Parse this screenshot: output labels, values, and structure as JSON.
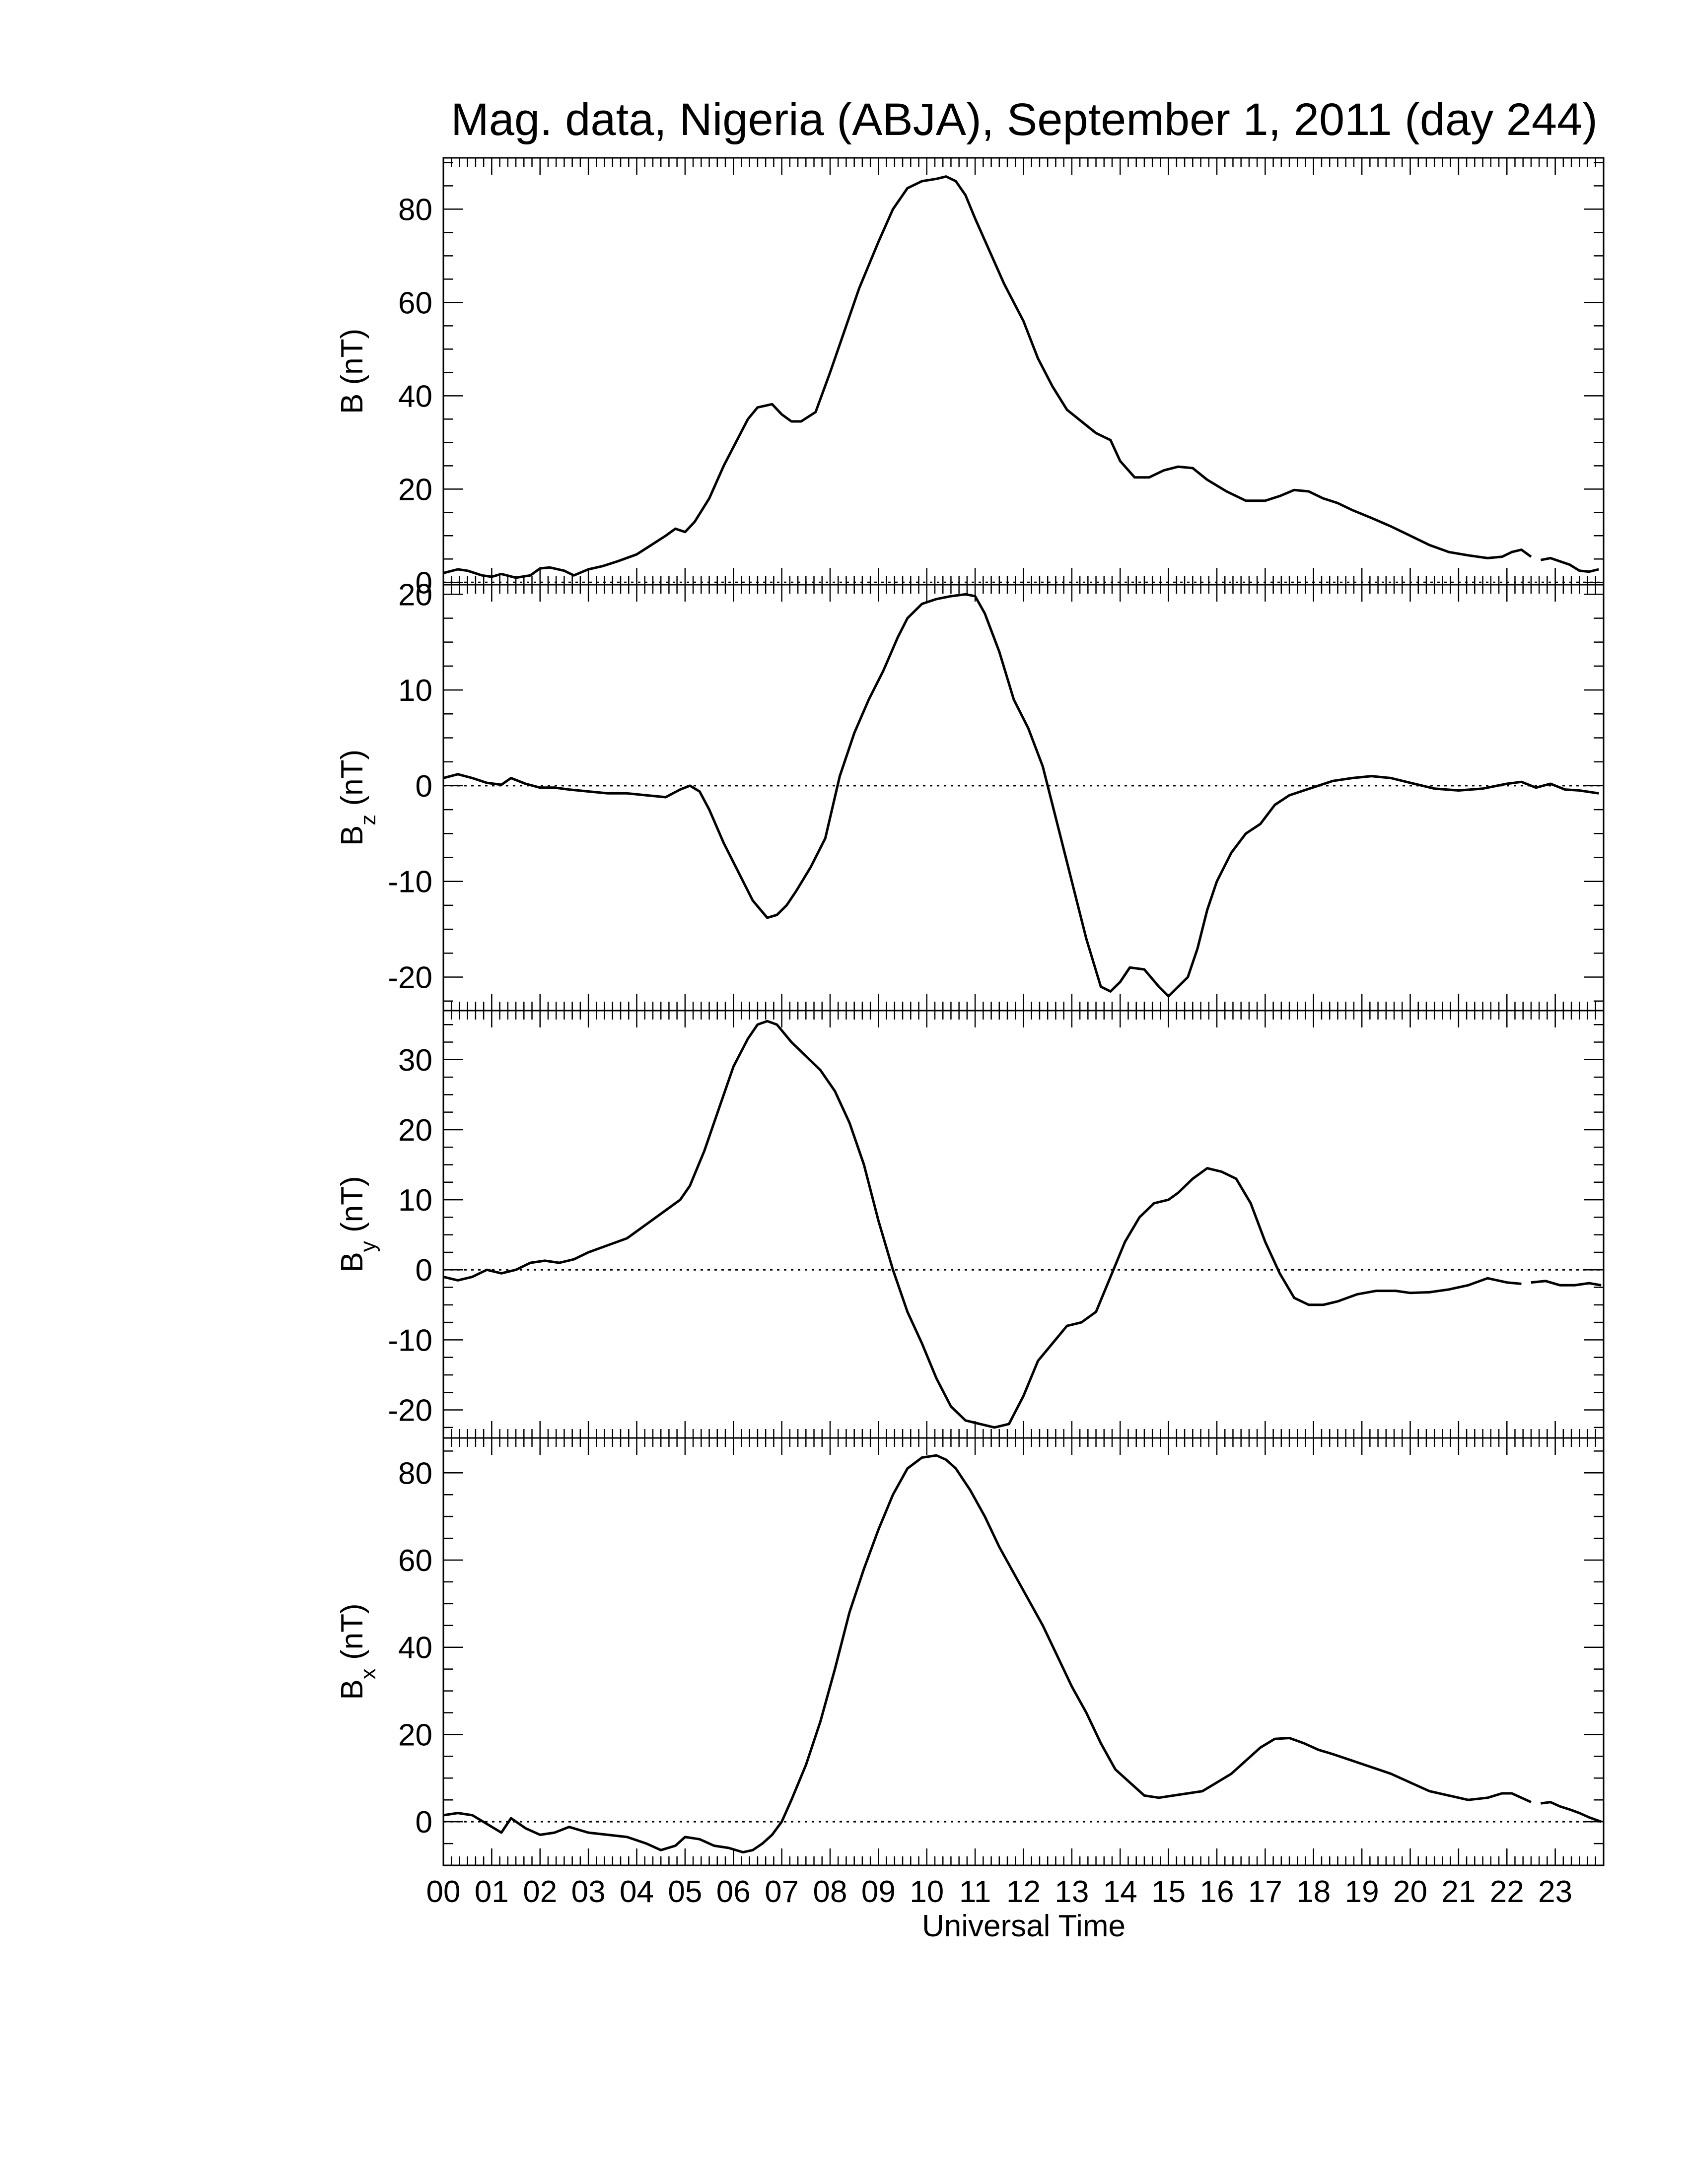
{
  "chart_data": {
    "type": "line",
    "title": "Mag. data, Nigeria (ABJA), September 1, 2011 (day 244)",
    "xlabel": "Universal Time",
    "x_ticks": [
      "00",
      "01",
      "02",
      "03",
      "04",
      "05",
      "06",
      "07",
      "08",
      "09",
      "10",
      "11",
      "12",
      "13",
      "14",
      "15",
      "16",
      "17",
      "18",
      "19",
      "20",
      "21",
      "22",
      "23"
    ],
    "xlim": [
      0,
      24
    ],
    "line_color": "#000000",
    "panels": [
      {
        "id": "B",
        "ylabel": "B (nT)",
        "ylabel_main": "B",
        "ylabel_sub": "",
        "ylabel_unit": " (nT)",
        "ylim": [
          -0.5,
          91
        ],
        "yticks": [
          0,
          20,
          40,
          60,
          80
        ],
        "zero_line": true,
        "series": [
          {
            "x": [
              0.0,
              0.3,
              0.5,
              0.8,
              1.0,
              1.2,
              1.5,
              1.8,
              2.0,
              2.2,
              2.5,
              2.7,
              3.0,
              3.3,
              3.6,
              4.0,
              4.3,
              4.6,
              4.8,
              5.0,
              5.2,
              5.5,
              5.8,
              6.1,
              6.3,
              6.5,
              6.8,
              7.0,
              7.2,
              7.4,
              7.7,
              8.0,
              8.3,
              8.6,
              9.0,
              9.3,
              9.6,
              9.9,
              10.2,
              10.4,
              10.6,
              10.8,
              11.0,
              11.3,
              11.6,
              12.0,
              12.3,
              12.6,
              12.9,
              13.2,
              13.5,
              13.8,
              14.0,
              14.3,
              14.6,
              14.9,
              15.2,
              15.5,
              15.8,
              16.2,
              16.6,
              17.0,
              17.3,
              17.6,
              17.9,
              18.2,
              18.5,
              18.8,
              19.2,
              19.6,
              20.0,
              20.4,
              20.8,
              21.2,
              21.6,
              21.9,
              22.1,
              22.3,
              22.5
            ],
            "y": [
              2,
              2.8,
              2.5,
              1.5,
              1.2,
              1.8,
              1.0,
              1.5,
              3.0,
              3.2,
              2.5,
              1.5,
              2.8,
              3.5,
              4.5,
              6,
              8,
              10,
              11.5,
              10.8,
              13,
              18,
              25,
              31,
              35,
              37.5,
              38.2,
              36,
              34.5,
              34.5,
              36.5,
              45,
              54,
              63,
              73,
              80,
              84.5,
              86,
              86.5,
              87,
              86,
              83,
              78,
              71,
              64,
              56,
              48,
              42,
              37,
              34.5,
              32,
              30.5,
              26,
              22.5,
              22.5,
              24,
              24.8,
              24.5,
              22,
              19.5,
              17.5,
              17.5,
              18.5,
              19.8,
              19.5,
              18,
              17,
              15.5,
              13.8,
              12,
              10,
              8,
              6.5,
              5.8,
              5.2,
              5.5,
              6.5,
              7,
              5.5
            ]
          },
          {
            "x": [
              22.7,
              22.9,
              23.1,
              23.3,
              23.5,
              23.7,
              23.9
            ],
            "y": [
              4.8,
              5.2,
              4.5,
              3.8,
              2.5,
              2.3,
              2.8
            ]
          }
        ]
      },
      {
        "id": "Bz",
        "ylabel": "Bz (nT)",
        "ylabel_main": "B",
        "ylabel_sub": "z",
        "ylabel_unit": " (nT)",
        "ylim": [
          -23.5,
          21
        ],
        "yticks": [
          -20,
          -10,
          0,
          10,
          20
        ],
        "zero_line": true,
        "series": [
          {
            "x": [
              0.0,
              0.3,
              0.6,
              0.9,
              1.2,
              1.4,
              1.7,
              2.0,
              2.3,
              2.6,
              3.0,
              3.4,
              3.8,
              4.2,
              4.6,
              4.9,
              5.1,
              5.3,
              5.5,
              5.8,
              6.1,
              6.4,
              6.7,
              6.9,
              7.1,
              7.3,
              7.6,
              7.9,
              8.2,
              8.5,
              8.8,
              9.1,
              9.4,
              9.6,
              9.9,
              10.2,
              10.5,
              10.8,
              11.0,
              11.2,
              11.5,
              11.8,
              12.1,
              12.4,
              12.7,
              13.0,
              13.3,
              13.6,
              13.8,
              14.0,
              14.2,
              14.5,
              14.8,
              15.0,
              15.2,
              15.4,
              15.6,
              15.8,
              16.0,
              16.3,
              16.6,
              16.9,
              17.2,
              17.5,
              17.8,
              18.1,
              18.4,
              18.8,
              19.2,
              19.6,
              20.0,
              20.5,
              21.0,
              21.5,
              22.0,
              22.3,
              22.6,
              22.9,
              23.2,
              23.5,
              23.9
            ],
            "y": [
              0.8,
              1.2,
              0.8,
              0.3,
              0.1,
              0.8,
              0.2,
              -0.2,
              -0.2,
              -0.4,
              -0.6,
              -0.8,
              -0.8,
              -1.0,
              -1.2,
              -0.4,
              0,
              -0.6,
              -2.5,
              -6,
              -9,
              -12,
              -13.8,
              -13.5,
              -12.5,
              -11,
              -8.5,
              -5.5,
              1,
              5.5,
              9,
              12,
              15.5,
              17.5,
              19,
              19.5,
              19.8,
              20,
              19.8,
              18,
              14,
              9,
              6,
              2,
              -4,
              -10,
              -16,
              -21,
              -21.5,
              -20.5,
              -19,
              -19.2,
              -21,
              -22,
              -21,
              -20,
              -17,
              -13,
              -10,
              -7,
              -5,
              -4,
              -2,
              -1,
              -0.5,
              0,
              0.5,
              0.8,
              1,
              0.8,
              0.3,
              -0.3,
              -0.5,
              -0.3,
              0.2,
              0.4,
              -0.2,
              0.2,
              -0.4,
              -0.5,
              -0.8
            ]
          }
        ]
      },
      {
        "id": "By",
        "ylabel": "By (nT)",
        "ylabel_main": "B",
        "ylabel_sub": "y",
        "ylabel_unit": " (nT)",
        "ylim": [
          -24,
          37
        ],
        "yticks": [
          -20,
          -10,
          0,
          10,
          20,
          30
        ],
        "zero_line": true,
        "series": [
          {
            "x": [
              0.0,
              0.3,
              0.6,
              0.9,
              1.2,
              1.5,
              1.8,
              2.1,
              2.4,
              2.7,
              3.0,
              3.4,
              3.8,
              4.2,
              4.6,
              4.9,
              5.1,
              5.4,
              5.7,
              6.0,
              6.3,
              6.5,
              6.7,
              6.9,
              7.2,
              7.5,
              7.8,
              8.1,
              8.4,
              8.7,
              9.0,
              9.3,
              9.6,
              9.9,
              10.2,
              10.5,
              10.8,
              11.1,
              11.4,
              11.7,
              12.0,
              12.3,
              12.6,
              12.9,
              13.2,
              13.5,
              13.8,
              14.1,
              14.4,
              14.7,
              15.0,
              15.2,
              15.5,
              15.8,
              16.1,
              16.4,
              16.7,
              17.0,
              17.3,
              17.6,
              17.9,
              18.2,
              18.5,
              18.9,
              19.3,
              19.7,
              20.0,
              20.4,
              20.8,
              21.2,
              21.6,
              22.0,
              22.3
            ],
            "y": [
              -1,
              -1.5,
              -1,
              0,
              -0.5,
              0,
              1,
              1.3,
              1,
              1.5,
              2.5,
              3.5,
              4.5,
              6.5,
              8.5,
              10,
              12,
              17,
              23,
              29,
              33,
              35,
              35.5,
              35,
              32.5,
              30.5,
              28.5,
              25.5,
              21,
              15,
              7,
              0,
              -6,
              -10.5,
              -15.5,
              -19.5,
              -21.5,
              -22,
              -22.5,
              -22,
              -18,
              -13,
              -10.5,
              -8,
              -7.5,
              -6,
              -1,
              4,
              7.5,
              9.5,
              10,
              11,
              13,
              14.5,
              14,
              13,
              9.5,
              4,
              -0.5,
              -4,
              -5,
              -5,
              -4.5,
              -3.5,
              -3,
              -3,
              -3.3,
              -3.2,
              -2.8,
              -2.2,
              -1.2,
              -1.8,
              -2
            ]
          },
          {
            "x": [
              22.5,
              22.8,
              23.1,
              23.4,
              23.7,
              23.95
            ],
            "y": [
              -1.8,
              -1.6,
              -2.2,
              -2.2,
              -1.9,
              -2.2
            ]
          }
        ]
      },
      {
        "id": "Bx",
        "ylabel": "Bx (nT)",
        "ylabel_main": "B",
        "ylabel_sub": "x",
        "ylabel_unit": " (nT)",
        "ylim": [
          -10,
          88
        ],
        "yticks": [
          0,
          20,
          40,
          60,
          80
        ],
        "zero_line": true,
        "series": [
          {
            "x": [
              0.0,
              0.3,
              0.6,
              0.9,
              1.2,
              1.4,
              1.7,
              2.0,
              2.3,
              2.6,
              3.0,
              3.4,
              3.8,
              4.2,
              4.5,
              4.8,
              5.0,
              5.3,
              5.6,
              5.9,
              6.2,
              6.4,
              6.6,
              6.8,
              7.0,
              7.2,
              7.5,
              7.8,
              8.1,
              8.4,
              8.7,
              9.0,
              9.3,
              9.6,
              9.9,
              10.2,
              10.4,
              10.6,
              10.9,
              11.2,
              11.5,
              11.8,
              12.1,
              12.4,
              12.7,
              13.0,
              13.3,
              13.6,
              13.9,
              14.2,
              14.5,
              14.8,
              15.1,
              15.4,
              15.7,
              16.0,
              16.3,
              16.6,
              16.9,
              17.2,
              17.5,
              17.8,
              18.1,
              18.4,
              18.8,
              19.2,
              19.6,
              20.0,
              20.4,
              20.8,
              21.2,
              21.6,
              21.9,
              22.1,
              22.3,
              22.5
            ],
            "y": [
              1.5,
              2,
              1.5,
              -0.5,
              -2.5,
              0.8,
              -1.5,
              -3,
              -2.5,
              -1.2,
              -2.5,
              -3,
              -3.5,
              -5,
              -6.5,
              -5.5,
              -3.5,
              -4,
              -5.5,
              -6,
              -7,
              -6.5,
              -5,
              -3,
              0,
              5,
              13,
              23,
              35,
              48,
              58,
              67,
              75,
              81,
              83.5,
              84,
              83,
              81,
              76,
              70,
              63,
              57,
              51,
              45,
              38,
              31,
              25,
              18,
              12,
              9,
              6,
              5.5,
              6,
              6.5,
              7,
              9,
              11,
              14,
              17,
              19,
              19.2,
              18,
              16.5,
              15.5,
              14,
              12.5,
              11,
              9,
              7,
              6,
              5,
              5.5,
              6.5,
              6.5,
              5.5,
              4.5
            ]
          },
          {
            "x": [
              22.7,
              22.9,
              23.1,
              23.3,
              23.5,
              23.7,
              23.95
            ],
            "y": [
              4.2,
              4.5,
              3.5,
              2.8,
              2,
              1,
              0
            ]
          }
        ]
      }
    ]
  }
}
